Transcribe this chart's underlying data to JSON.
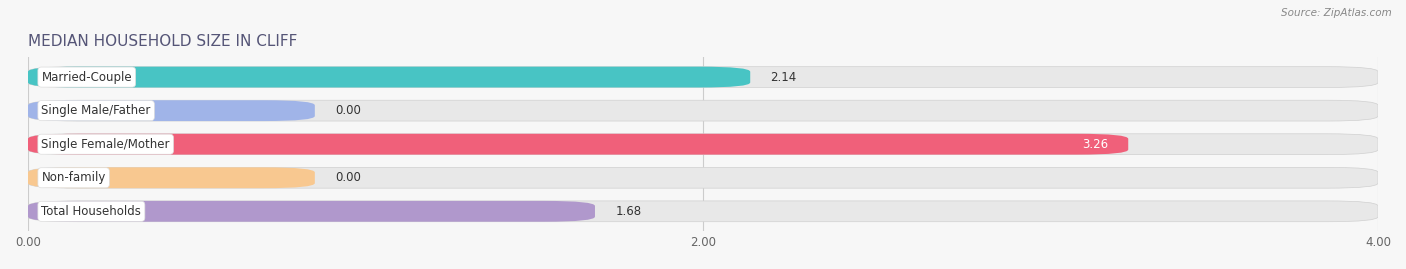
{
  "title": "MEDIAN HOUSEHOLD SIZE IN CLIFF",
  "source": "Source: ZipAtlas.com",
  "categories": [
    "Married-Couple",
    "Single Male/Father",
    "Single Female/Mother",
    "Non-family",
    "Total Households"
  ],
  "values": [
    2.14,
    0.0,
    3.26,
    0.0,
    1.68
  ],
  "bar_colors": [
    "#48C4C4",
    "#A0B4E8",
    "#F0607A",
    "#F8C890",
    "#B098CC"
  ],
  "background_color": "#f7f7f7",
  "bar_bg_color": "#e8e8e8",
  "xlim": [
    0,
    4.0
  ],
  "xticks": [
    0.0,
    2.0,
    4.0
  ],
  "xtick_labels": [
    "0.00",
    "2.00",
    "4.00"
  ],
  "title_fontsize": 11,
  "label_fontsize": 8.5,
  "value_fontsize": 8.5,
  "bar_height": 0.62,
  "fig_width": 14.06,
  "fig_height": 2.69
}
